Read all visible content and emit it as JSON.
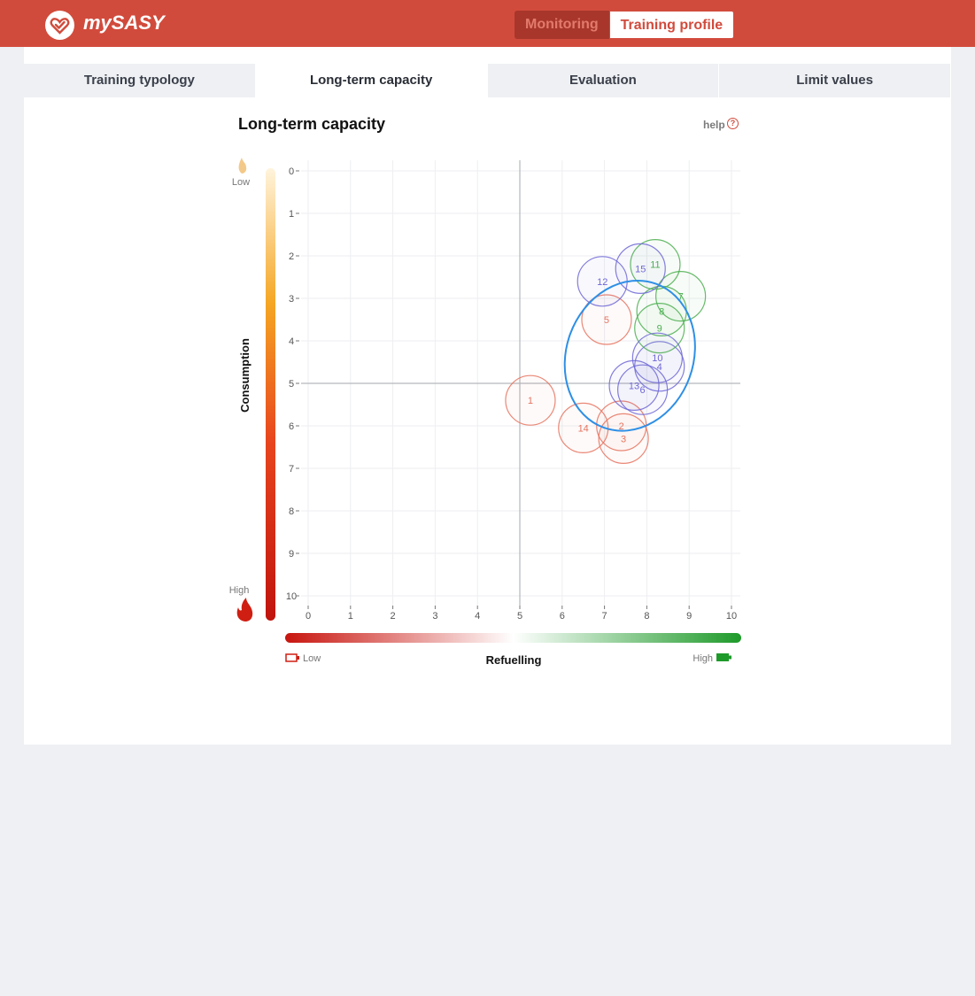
{
  "app": {
    "brand": "mySASY"
  },
  "header": {
    "monitoring_label": "Monitoring",
    "training_profile_label": "Training profile"
  },
  "tabs": [
    {
      "label": "Training typology"
    },
    {
      "label": "Long-term capacity"
    },
    {
      "label": "Evaluation"
    },
    {
      "label": "Limit values"
    }
  ],
  "help": {
    "label": "help",
    "icon": "?"
  },
  "colors": {
    "brand": "#d14b3c",
    "red_points": "#e6735f",
    "blue_points": "#6f67d6",
    "green_points": "#4caf50",
    "ellipse": "#2e8fe6"
  },
  "chart_data": {
    "type": "scatter",
    "title": "Long-term capacity",
    "xlabel": "Refuelling",
    "ylabel": "Consumption",
    "xlim": [
      0,
      10
    ],
    "ylim": [
      0,
      10
    ],
    "y_inverted": true,
    "grid": true,
    "x_ticks": [
      "0",
      "1",
      "2",
      "3",
      "4",
      "5",
      "6",
      "7",
      "8",
      "9",
      "10"
    ],
    "y_ticks": [
      "0",
      "1",
      "2",
      "3",
      "4",
      "5",
      "6",
      "7",
      "8",
      "9",
      "10"
    ],
    "reference_lines": {
      "x": 5,
      "y": 5
    },
    "y_scale_labels": {
      "top": "Low",
      "bottom": "High"
    },
    "x_scale_labels": {
      "left": "Low",
      "right": "High"
    },
    "points": [
      {
        "label": "1",
        "x": 5.25,
        "y": 5.4,
        "group": "red"
      },
      {
        "label": "2",
        "x": 7.4,
        "y": 6.0,
        "group": "red"
      },
      {
        "label": "3",
        "x": 7.45,
        "y": 6.3,
        "group": "red"
      },
      {
        "label": "4",
        "x": 8.3,
        "y": 4.6,
        "group": "blue"
      },
      {
        "label": "5",
        "x": 7.05,
        "y": 3.5,
        "group": "red"
      },
      {
        "label": "6",
        "x": 7.9,
        "y": 5.15,
        "group": "blue"
      },
      {
        "label": "7",
        "x": 8.8,
        "y": 2.95,
        "group": "green"
      },
      {
        "label": "8",
        "x": 8.35,
        "y": 3.3,
        "group": "green"
      },
      {
        "label": "9",
        "x": 8.3,
        "y": 3.7,
        "group": "green"
      },
      {
        "label": "10",
        "x": 8.25,
        "y": 4.4,
        "group": "blue"
      },
      {
        "label": "11",
        "x": 8.2,
        "y": 2.2,
        "group": "green"
      },
      {
        "label": "12",
        "x": 6.95,
        "y": 2.6,
        "group": "blue"
      },
      {
        "label": "13",
        "x": 7.7,
        "y": 5.05,
        "group": "blue"
      },
      {
        "label": "14",
        "x": 6.5,
        "y": 6.05,
        "group": "red"
      },
      {
        "label": "15",
        "x": 7.85,
        "y": 2.3,
        "group": "blue"
      }
    ],
    "ellipse": {
      "center_x": 7.6,
      "center_y": 4.35,
      "radius_x": 1.5,
      "radius_y": 1.8,
      "rotation_deg": 20
    }
  }
}
